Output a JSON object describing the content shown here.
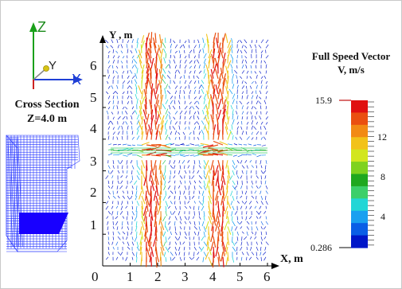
{
  "axes_icon": {
    "z_label": "Z",
    "y_label": "Y",
    "x_label": "X",
    "colors": {
      "z": "#1aa01a",
      "y": "#d7c414",
      "x": "#1f3fd6",
      "base": "#cc2222"
    }
  },
  "cross_section": {
    "title": "Cross Section",
    "subtitle": "Z=4.0 m",
    "mesh_color": "#2333ff"
  },
  "plot": {
    "y_axis_label": "Y , m",
    "x_axis_label": "X, m",
    "x_ticks": [
      "0",
      "1",
      "2",
      "3",
      "4",
      "5",
      "6"
    ],
    "y_ticks": [
      "1",
      "2",
      "3",
      "4",
      "5",
      "6"
    ]
  },
  "legend": {
    "title_line1": "Full Speed Vector",
    "title_line2": "V, m/s",
    "max_label": "15.9",
    "min_label": "0.286",
    "tick_labels": [
      "12",
      "8",
      "4"
    ],
    "colors": [
      "#0016c8",
      "#0a5ee6",
      "#1aa0f0",
      "#22d6d6",
      "#3ccf6a",
      "#1fa81f",
      "#7fd21f",
      "#d2e61f",
      "#f2c21a",
      "#f28a14",
      "#ea4f10",
      "#e01010"
    ]
  }
}
